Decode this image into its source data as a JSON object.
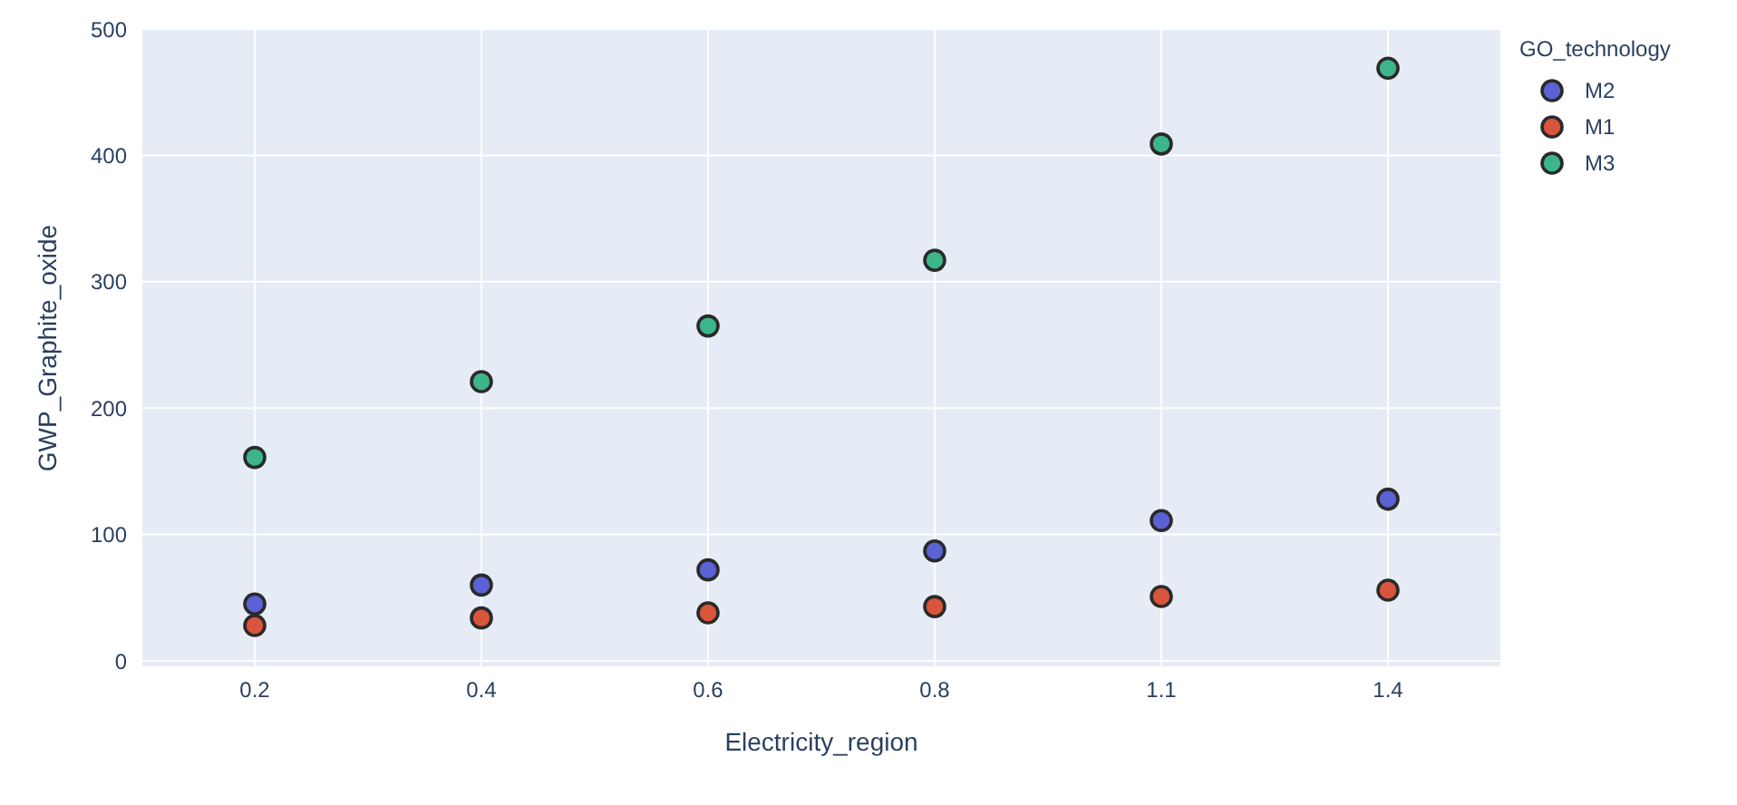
{
  "chart_data": {
    "type": "scatter",
    "xlabel": "Electricity_region",
    "ylabel": "GWP_Graphite_oxide",
    "legend_title": "GO_technology",
    "categories": [
      "0.2",
      "0.4",
      "0.6",
      "0.8",
      "1.1",
      "1.4"
    ],
    "series": [
      {
        "name": "M2",
        "color": "#5b62d4",
        "values": [
          45,
          60,
          72,
          87,
          111,
          128
        ]
      },
      {
        "name": "M1",
        "color": "#d9553c",
        "values": [
          28,
          34,
          38,
          43,
          51,
          56
        ]
      },
      {
        "name": "M3",
        "color": "#3db58a",
        "values": [
          161,
          221,
          265,
          317,
          409,
          469
        ]
      }
    ],
    "ylim": [
      -5,
      500
    ],
    "yticks": [
      0,
      100,
      200,
      300,
      400,
      500
    ],
    "grid": true,
    "legend": "top right",
    "marker": "circle"
  }
}
